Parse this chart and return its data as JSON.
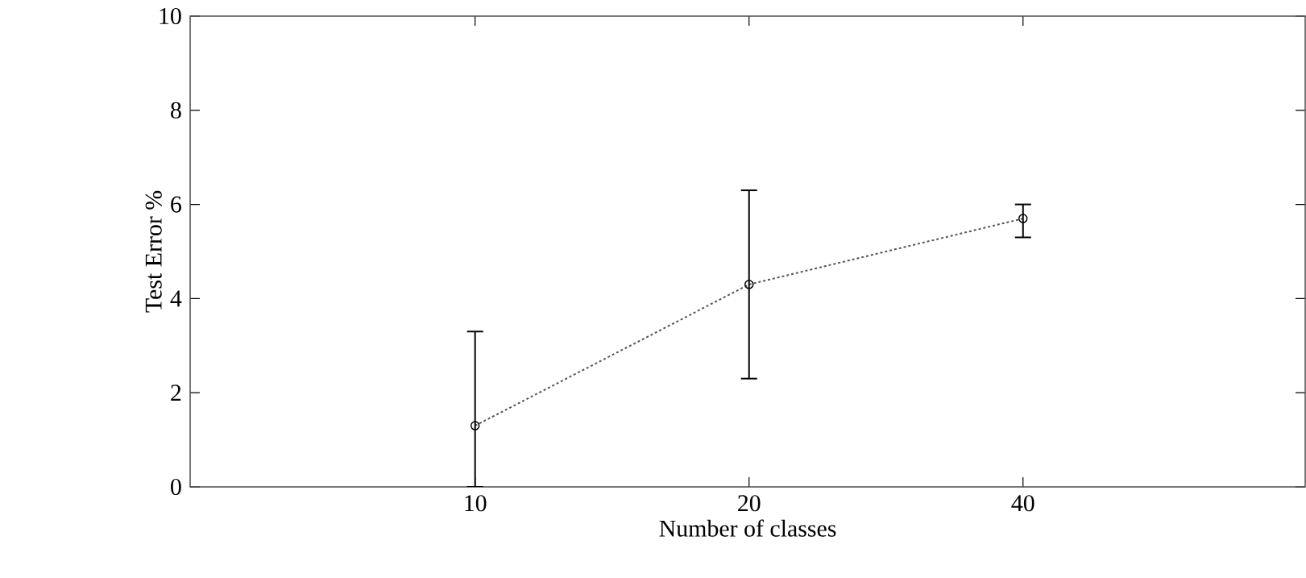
{
  "chart_data": {
    "type": "line",
    "xlabel": "Number of classes",
    "ylabel": "Test Error %",
    "categories": [
      "10",
      "20",
      "40"
    ],
    "values": [
      1.3,
      4.3,
      5.7
    ],
    "errors": [
      [
        0,
        3.3
      ],
      [
        2.3,
        6.3
      ],
      [
        5.3,
        6.0
      ]
    ],
    "color": "#555555",
    "marker": "circle",
    "line_style": "dashed",
    "ylim": [
      0,
      10
    ],
    "yticks": [
      0,
      2,
      4,
      6,
      8,
      10
    ]
  }
}
